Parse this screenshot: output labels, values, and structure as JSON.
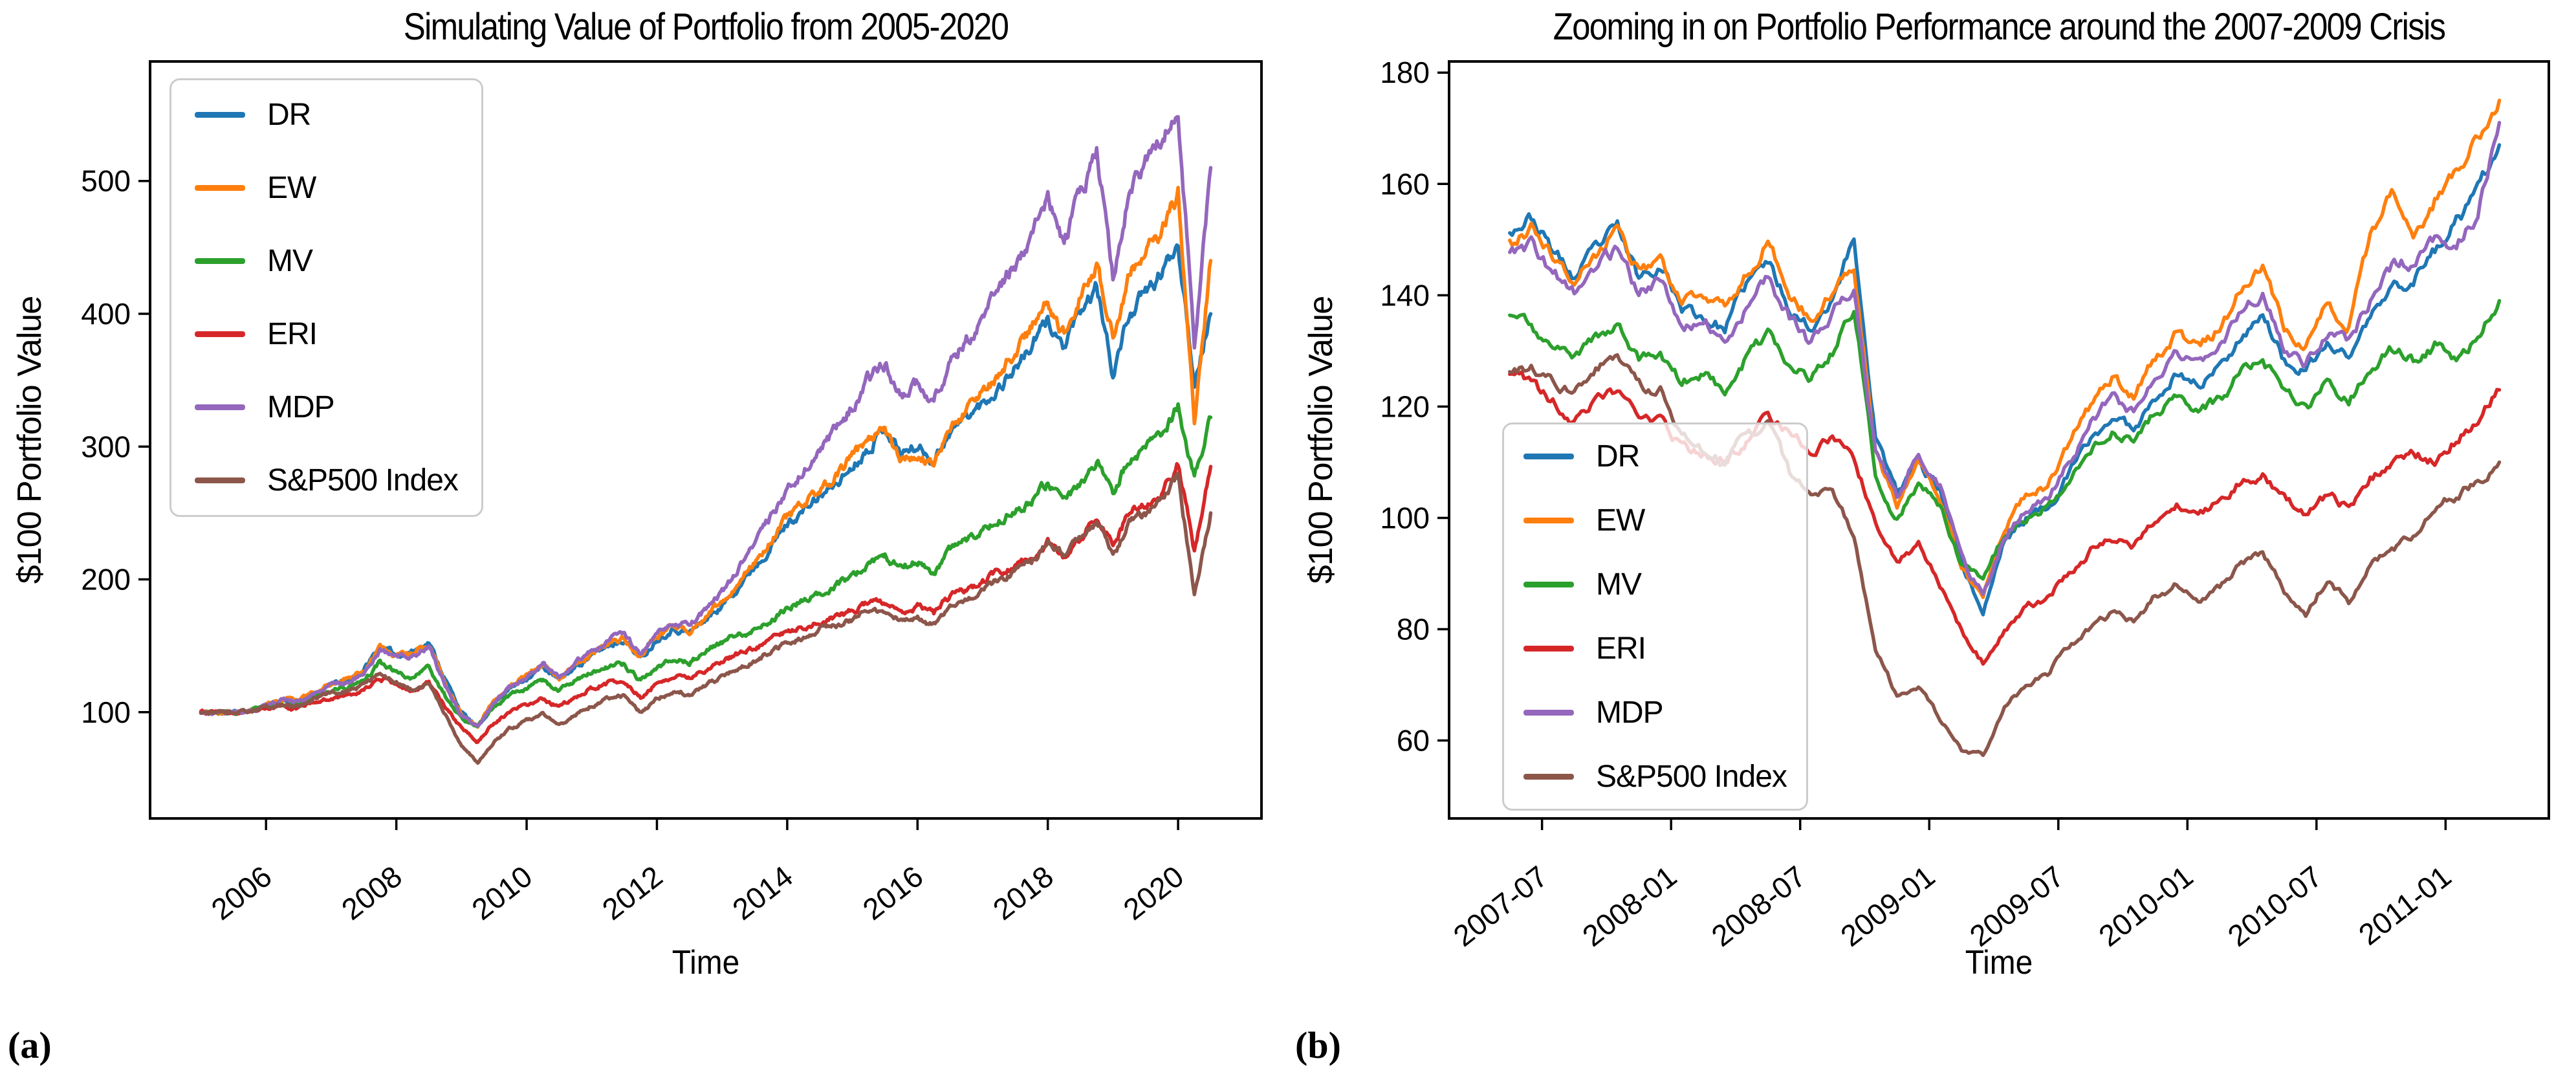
{
  "figure": {
    "background": "#ffffff",
    "tags": [
      "(a)",
      "(b)"
    ]
  },
  "chart_data": [
    {
      "type": "line",
      "title": "Simulating Value of Portfolio from 2005-2020",
      "xlabel": "Time",
      "ylabel": "$100 Portfolio Value",
      "x_domain": [
        2004.22,
        2021.28
      ],
      "y_domain": [
        20,
        590
      ],
      "xticks": [
        {
          "v": 2006,
          "label": "2006"
        },
        {
          "v": 2008,
          "label": "2008"
        },
        {
          "v": 2010,
          "label": "2010"
        },
        {
          "v": 2012,
          "label": "2012"
        },
        {
          "v": 2014,
          "label": "2014"
        },
        {
          "v": 2016,
          "label": "2016"
        },
        {
          "v": 2018,
          "label": "2018"
        },
        {
          "v": 2020,
          "label": "2020"
        }
      ],
      "yticks": [
        {
          "v": 100,
          "label": "100"
        },
        {
          "v": 200,
          "label": "200"
        },
        {
          "v": 300,
          "label": "300"
        },
        {
          "v": 400,
          "label": "400"
        },
        {
          "v": 500,
          "label": "500"
        }
      ],
      "legend": {
        "position": "upper left",
        "framealpha": 0.8
      },
      "grid": false,
      "x0": 2005.0,
      "dx": 0.25,
      "noise": {
        "seed": 11,
        "amp": 0.02,
        "substeps": 13,
        "persist": 0.72
      },
      "series": [
        {
          "name": "DR",
          "color": "#1f77b4",
          "values": [
            100,
            99.5,
            100,
            101,
            106,
            109,
            108,
            114,
            121,
            124,
            132,
            150,
            143,
            146,
            153,
            125,
            100,
            88,
            108,
            118,
            126,
            134,
            124,
            134,
            143,
            150,
            155,
            140,
            155,
            163,
            160,
            170,
            180,
            195,
            210,
            225,
            242,
            252,
            262,
            272,
            285,
            300,
            315,
            295,
            300,
            290,
            312,
            322,
            332,
            345,
            360,
            375,
            395,
            375,
            400,
            420,
            355,
            400,
            415,
            430,
            455,
            350,
            400
          ]
        },
        {
          "name": "EW",
          "color": "#ff7f0e",
          "values": [
            100,
            99.5,
            100,
            101,
            106,
            110,
            109,
            115,
            122,
            125,
            131,
            149,
            142,
            145,
            151,
            122,
            98,
            90,
            110,
            120,
            128,
            136,
            126,
            136,
            144,
            152,
            156,
            141,
            157,
            165,
            162,
            172,
            183,
            198,
            214,
            230,
            246,
            256,
            266,
            278,
            292,
            306,
            312,
            288,
            295,
            285,
            315,
            328,
            340,
            355,
            372,
            390,
            408,
            385,
            415,
            435,
            380,
            430,
            448,
            462,
            490,
            320,
            440
          ]
        },
        {
          "name": "MV",
          "color": "#2ca02c",
          "values": [
            100,
            99.5,
            100,
            100,
            104,
            107,
            106,
            111,
            117,
            119,
            124,
            137,
            130,
            126,
            133,
            112,
            95,
            89,
            104,
            112,
            118,
            124,
            116,
            124,
            130,
            134,
            136,
            124,
            134,
            140,
            138,
            146,
            152,
            158,
            162,
            168,
            178,
            184,
            190,
            196,
            202,
            212,
            218,
            208,
            214,
            206,
            222,
            228,
            236,
            246,
            252,
            258,
            272,
            258,
            274,
            290,
            268,
            290,
            298,
            306,
            332,
            275,
            322
          ]
        },
        {
          "name": "ERI",
          "color": "#d62728",
          "values": [
            100,
            99.5,
            100,
            99,
            102,
            104,
            103,
            107,
            112,
            113,
            116,
            126,
            120,
            116,
            122,
            105,
            88,
            78,
            92,
            100,
            105,
            110,
            104,
            112,
            118,
            122,
            124,
            112,
            122,
            128,
            126,
            132,
            138,
            144,
            148,
            154,
            160,
            164,
            168,
            172,
            176,
            182,
            184,
            176,
            180,
            174,
            188,
            192,
            198,
            206,
            210,
            216,
            228,
            218,
            232,
            244,
            228,
            250,
            258,
            264,
            288,
            222,
            285
          ]
        },
        {
          "name": "MDP",
          "color": "#9467bd",
          "values": [
            100,
            99.5,
            100,
            101,
            105,
            109,
            108,
            114,
            121,
            123,
            129,
            147,
            141,
            143,
            149,
            120,
            97,
            88,
            108,
            119,
            127,
            136,
            126,
            137,
            146,
            154,
            158,
            143,
            160,
            169,
            166,
            177,
            190,
            208,
            228,
            248,
            268,
            282,
            298,
            312,
            330,
            352,
            362,
            338,
            348,
            335,
            365,
            380,
            398,
            418,
            438,
            460,
            488,
            450,
            490,
            522,
            430,
            495,
            515,
            535,
            562,
            370,
            510
          ]
        },
        {
          "name": "S&P500 Index",
          "color": "#8c564b",
          "values": [
            100,
            99.5,
            100,
            101,
            104,
            106,
            105,
            110,
            115,
            116,
            120,
            129,
            122,
            116,
            121,
            98,
            75,
            62,
            78,
            88,
            93,
            98,
            90,
            98,
            105,
            110,
            112,
            100,
            110,
            116,
            114,
            120,
            126,
            133,
            138,
            145,
            152,
            156,
            162,
            165,
            170,
            176,
            178,
            168,
            172,
            165,
            180,
            185,
            192,
            200,
            206,
            214,
            228,
            220,
            230,
            244,
            218,
            242,
            250,
            258,
            278,
            190,
            250
          ]
        }
      ]
    },
    {
      "type": "line",
      "title": "Zooming in on Portfolio Performance around the 2007-2009 Crisis",
      "xlabel": "Time",
      "ylabel": "$100 Portfolio Value",
      "x_domain": [
        2007.14,
        2011.4
      ],
      "y_domain": [
        46,
        182
      ],
      "xticks": [
        {
          "v": 2007.5,
          "label": "2007-07"
        },
        {
          "v": 2008.0,
          "label": "2008-01"
        },
        {
          "v": 2008.5,
          "label": "2008-07"
        },
        {
          "v": 2009.0,
          "label": "2009-01"
        },
        {
          "v": 2009.5,
          "label": "2009-07"
        },
        {
          "v": 2010.0,
          "label": "2010-01"
        },
        {
          "v": 2010.5,
          "label": "2010-07"
        },
        {
          "v": 2011.0,
          "label": "2011-01"
        }
      ],
      "yticks": [
        {
          "v": 60,
          "label": "60"
        },
        {
          "v": 80,
          "label": "80"
        },
        {
          "v": 100,
          "label": "100"
        },
        {
          "v": 120,
          "label": "120"
        },
        {
          "v": 140,
          "label": "140"
        },
        {
          "v": 160,
          "label": "160"
        },
        {
          "v": 180,
          "label": "180"
        }
      ],
      "legend": {
        "position": "lower left",
        "framealpha": 0.8
      },
      "grid": false,
      "x0": 2007.375,
      "dx": 0.0833333,
      "noise": {
        "seed": 23,
        "amp": 0.013,
        "substeps": 9,
        "persist": 0.72
      },
      "series": [
        {
          "name": "DR",
          "color": "#1f77b4",
          "values": [
            152,
            154,
            148,
            143,
            148,
            152,
            143,
            146,
            138,
            136,
            134,
            142,
            146,
            138,
            134,
            140,
            150,
            115,
            104,
            110,
            105,
            92,
            83,
            96,
            100,
            102,
            108,
            114,
            118,
            116,
            122,
            126,
            124,
            127,
            133,
            137,
            128,
            126,
            131,
            129,
            136,
            141,
            143,
            148,
            153,
            158,
            167
          ]
        },
        {
          "name": "EW",
          "color": "#ff7f0e",
          "values": [
            149,
            152,
            147,
            142,
            147,
            153,
            144,
            147,
            139,
            140,
            137,
            144,
            150,
            141,
            136,
            141,
            145,
            112,
            102,
            110,
            104,
            91,
            85,
            98,
            104,
            106,
            113,
            120,
            125,
            122,
            129,
            133,
            130,
            134,
            141,
            145,
            134,
            131,
            138,
            135,
            150,
            158,
            150,
            157,
            162,
            168,
            175
          ]
        },
        {
          "name": "MV",
          "color": "#2ca02c",
          "values": [
            137,
            135,
            130,
            128,
            132,
            135,
            128,
            130,
            124,
            126,
            123,
            129,
            133,
            128,
            125,
            130,
            138,
            108,
            100,
            106,
            102,
            92,
            89,
            97,
            100,
            102,
            107,
            112,
            116,
            114,
            119,
            122,
            119,
            121,
            126,
            129,
            122,
            119,
            124,
            121,
            127,
            130,
            128,
            131,
            128,
            133,
            139
          ]
        },
        {
          "name": "ERI",
          "color": "#d62728",
          "values": [
            126,
            124,
            121,
            117,
            121,
            122,
            118,
            117,
            113,
            111,
            110,
            114,
            118,
            115,
            112,
            114,
            110,
            100,
            92,
            95,
            88,
            80,
            74,
            80,
            84,
            86,
            90,
            94,
            96,
            95,
            99,
            102,
            100,
            103,
            107,
            108,
            104,
            100,
            104,
            102,
            107,
            110,
            112,
            110,
            114,
            118,
            123
          ]
        },
        {
          "name": "MDP",
          "color": "#9467bd",
          "values": [
            147,
            149,
            144,
            141,
            145,
            148,
            140,
            143,
            134,
            136,
            132,
            138,
            143,
            136,
            131,
            137,
            141,
            112,
            103,
            112,
            106,
            93,
            86,
            97,
            102,
            104,
            110,
            117,
            122,
            119,
            126,
            130,
            127,
            130,
            137,
            141,
            131,
            128,
            134,
            131,
            139,
            145,
            146,
            150,
            148,
            155,
            171
          ]
        },
        {
          "name": "S&P500 Index",
          "color": "#8c564b",
          "values": [
            126,
            127,
            124,
            123,
            127,
            130,
            124,
            123,
            115,
            112,
            110,
            115,
            117,
            108,
            104,
            106,
            96,
            76,
            68,
            70,
            64,
            58,
            57,
            66,
            70,
            72,
            77,
            80,
            83,
            81,
            86,
            88,
            85,
            87,
            92,
            94,
            87,
            83,
            89,
            85,
            92,
            95,
            96,
            102,
            104,
            107,
            110
          ]
        }
      ]
    }
  ]
}
